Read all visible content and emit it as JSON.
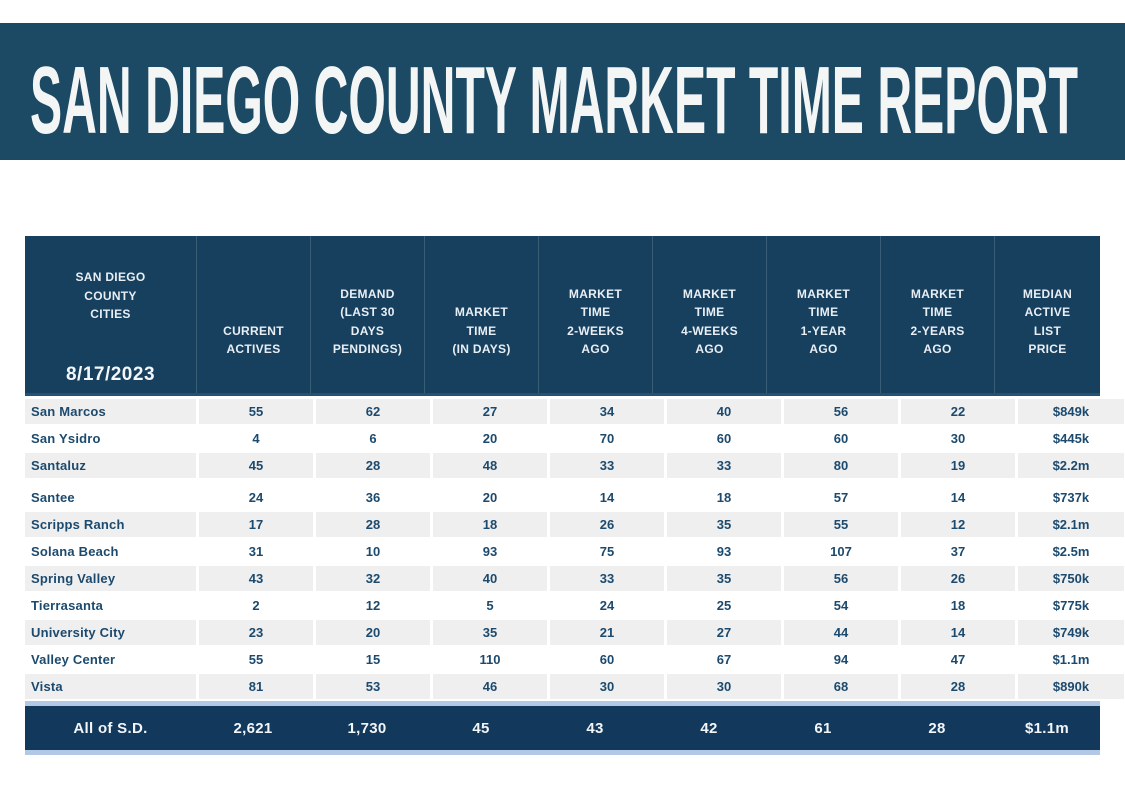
{
  "report": {
    "title": "SAN DIEGO COUNTY MARKET TIME REPORT",
    "date": "8/17/2023"
  },
  "colors": {
    "banner": "#1c4a64",
    "table_header": "#16405e",
    "table_footer": "#12395b",
    "row_stripe": "#efefef",
    "accent_strip": "#b2c8e5",
    "body_text": "#1c4a6e",
    "header_text": "#e9eef4"
  },
  "table": {
    "city_header": "SAN DIEGO\nCOUNTY\nCITIES",
    "columns": [
      "CURRENT\nACTIVES",
      "DEMAND\n(LAST 30\nDAYS\nPENDINGS)",
      "MARKET\nTIME\n(IN DAYS)",
      "MARKET\nTIME\n2-WEEKS\nAGO",
      "MARKET\nTIME\n4-WEEKS\nAGO",
      "MARKET\nTIME\n1-YEAR\nAGO",
      "MARKET\nTIME\n2-YEARS\nAGO",
      "MEDIAN\nACTIVE\nLIST\nPRICE"
    ]
  },
  "chart_data": {
    "type": "table",
    "title": "SAN DIEGO COUNTY MARKET TIME REPORT",
    "as_of_date": "8/17/2023",
    "columns": [
      "San Diego County Cities",
      "Current Actives",
      "Demand (Last 30 Days Pendings)",
      "Market Time (In Days)",
      "Market Time 2-Weeks Ago",
      "Market Time 4-Weeks Ago",
      "Market Time 1-Year Ago",
      "Market Time 2-Years Ago",
      "Median Active List Price"
    ],
    "rows": [
      [
        "San Marcos",
        "55",
        "62",
        "27",
        "34",
        "40",
        "56",
        "22",
        "$849k"
      ],
      [
        "San Ysidro",
        "4",
        "6",
        "20",
        "70",
        "60",
        "60",
        "30",
        "$445k"
      ],
      [
        "Santaluz",
        "45",
        "28",
        "48",
        "33",
        "33",
        "80",
        "19",
        "$2.2m"
      ],
      [
        "Santee",
        "24",
        "36",
        "20",
        "14",
        "18",
        "57",
        "14",
        "$737k"
      ],
      [
        "Scripps Ranch",
        "17",
        "28",
        "18",
        "26",
        "35",
        "55",
        "12",
        "$2.1m"
      ],
      [
        "Solana Beach",
        "31",
        "10",
        "93",
        "75",
        "93",
        "107",
        "37",
        "$2.5m"
      ],
      [
        "Spring Valley",
        "43",
        "32",
        "40",
        "33",
        "35",
        "56",
        "26",
        "$750k"
      ],
      [
        "Tierrasanta",
        "2",
        "12",
        "5",
        "24",
        "25",
        "54",
        "18",
        "$775k"
      ],
      [
        "University City",
        "23",
        "20",
        "35",
        "21",
        "27",
        "44",
        "14",
        "$749k"
      ],
      [
        "Valley Center",
        "55",
        "15",
        "110",
        "60",
        "67",
        "94",
        "47",
        "$1.1m"
      ],
      [
        "Vista",
        "81",
        "53",
        "46",
        "30",
        "30",
        "68",
        "28",
        "$890k"
      ]
    ],
    "footer_row": [
      "All of S.D.",
      "2,621",
      "1,730",
      "45",
      "43",
      "42",
      "61",
      "28",
      "$1.1m"
    ]
  }
}
